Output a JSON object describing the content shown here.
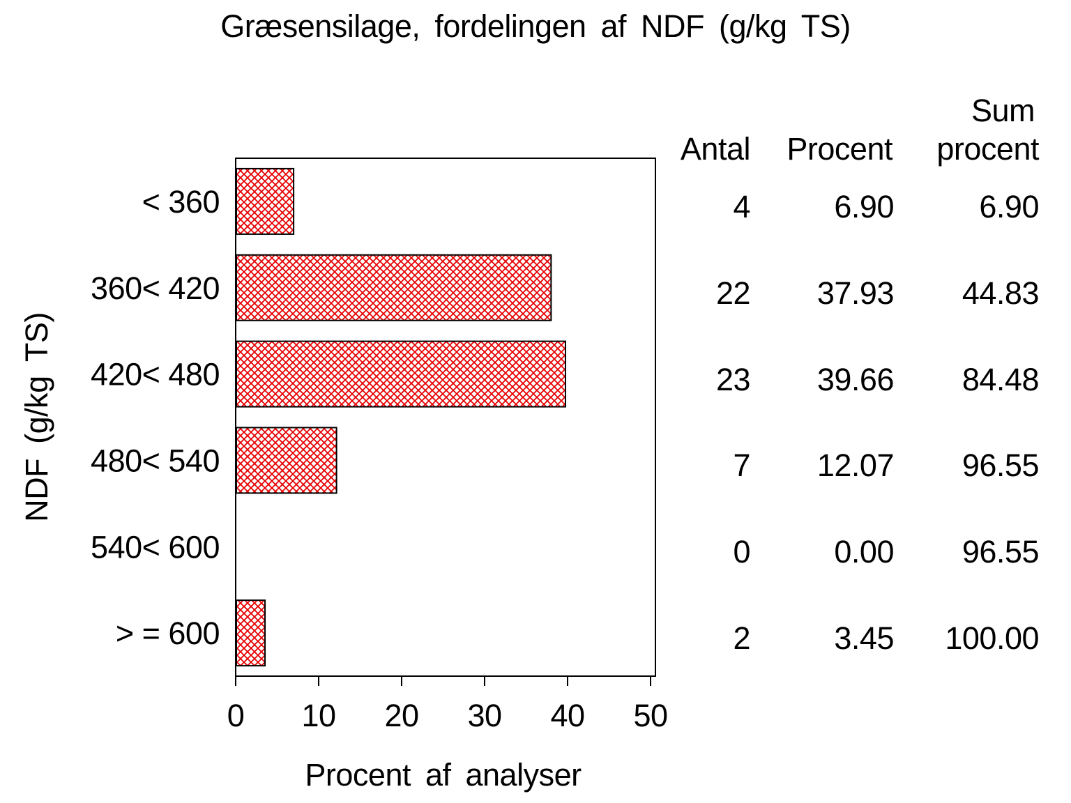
{
  "title": "Græsensilage, fordelingen af NDF (g/kg TS)",
  "chart_data": {
    "type": "bar",
    "orientation": "horizontal",
    "title": "Græsensilage, fordelingen af NDF (g/kg TS)",
    "categories": [
      "< 360",
      "360< 420",
      "420< 480",
      "480< 540",
      "540< 600",
      "> = 600"
    ],
    "values": [
      6.9,
      37.93,
      39.66,
      12.07,
      0.0,
      3.45
    ],
    "xlabel": "Procent af analyser",
    "ylabel": "NDF (g/kg TS)",
    "xlim": [
      0,
      50
    ],
    "xticks": [
      "0",
      "10",
      "20",
      "30",
      "40",
      "50"
    ],
    "grid": false,
    "frame": true,
    "bar_hatch": "diagonal-cross",
    "bar_hatch_color": "#e80000",
    "bar_border_color": "#000000",
    "axis_color": "#000000"
  },
  "table": {
    "header": {
      "antal": "Antal",
      "procent": "Procent",
      "sum_line1": "Sum",
      "sum_line2": "procent"
    },
    "rows": [
      {
        "antal": "4",
        "procent": "6.90",
        "sum": "6.90"
      },
      {
        "antal": "22",
        "procent": "37.93",
        "sum": "44.83"
      },
      {
        "antal": "23",
        "procent": "39.66",
        "sum": "84.48"
      },
      {
        "antal": "7",
        "procent": "12.07",
        "sum": "96.55"
      },
      {
        "antal": "0",
        "procent": "0.00",
        "sum": "96.55"
      },
      {
        "antal": "2",
        "procent": "3.45",
        "sum": "100.00"
      }
    ]
  }
}
